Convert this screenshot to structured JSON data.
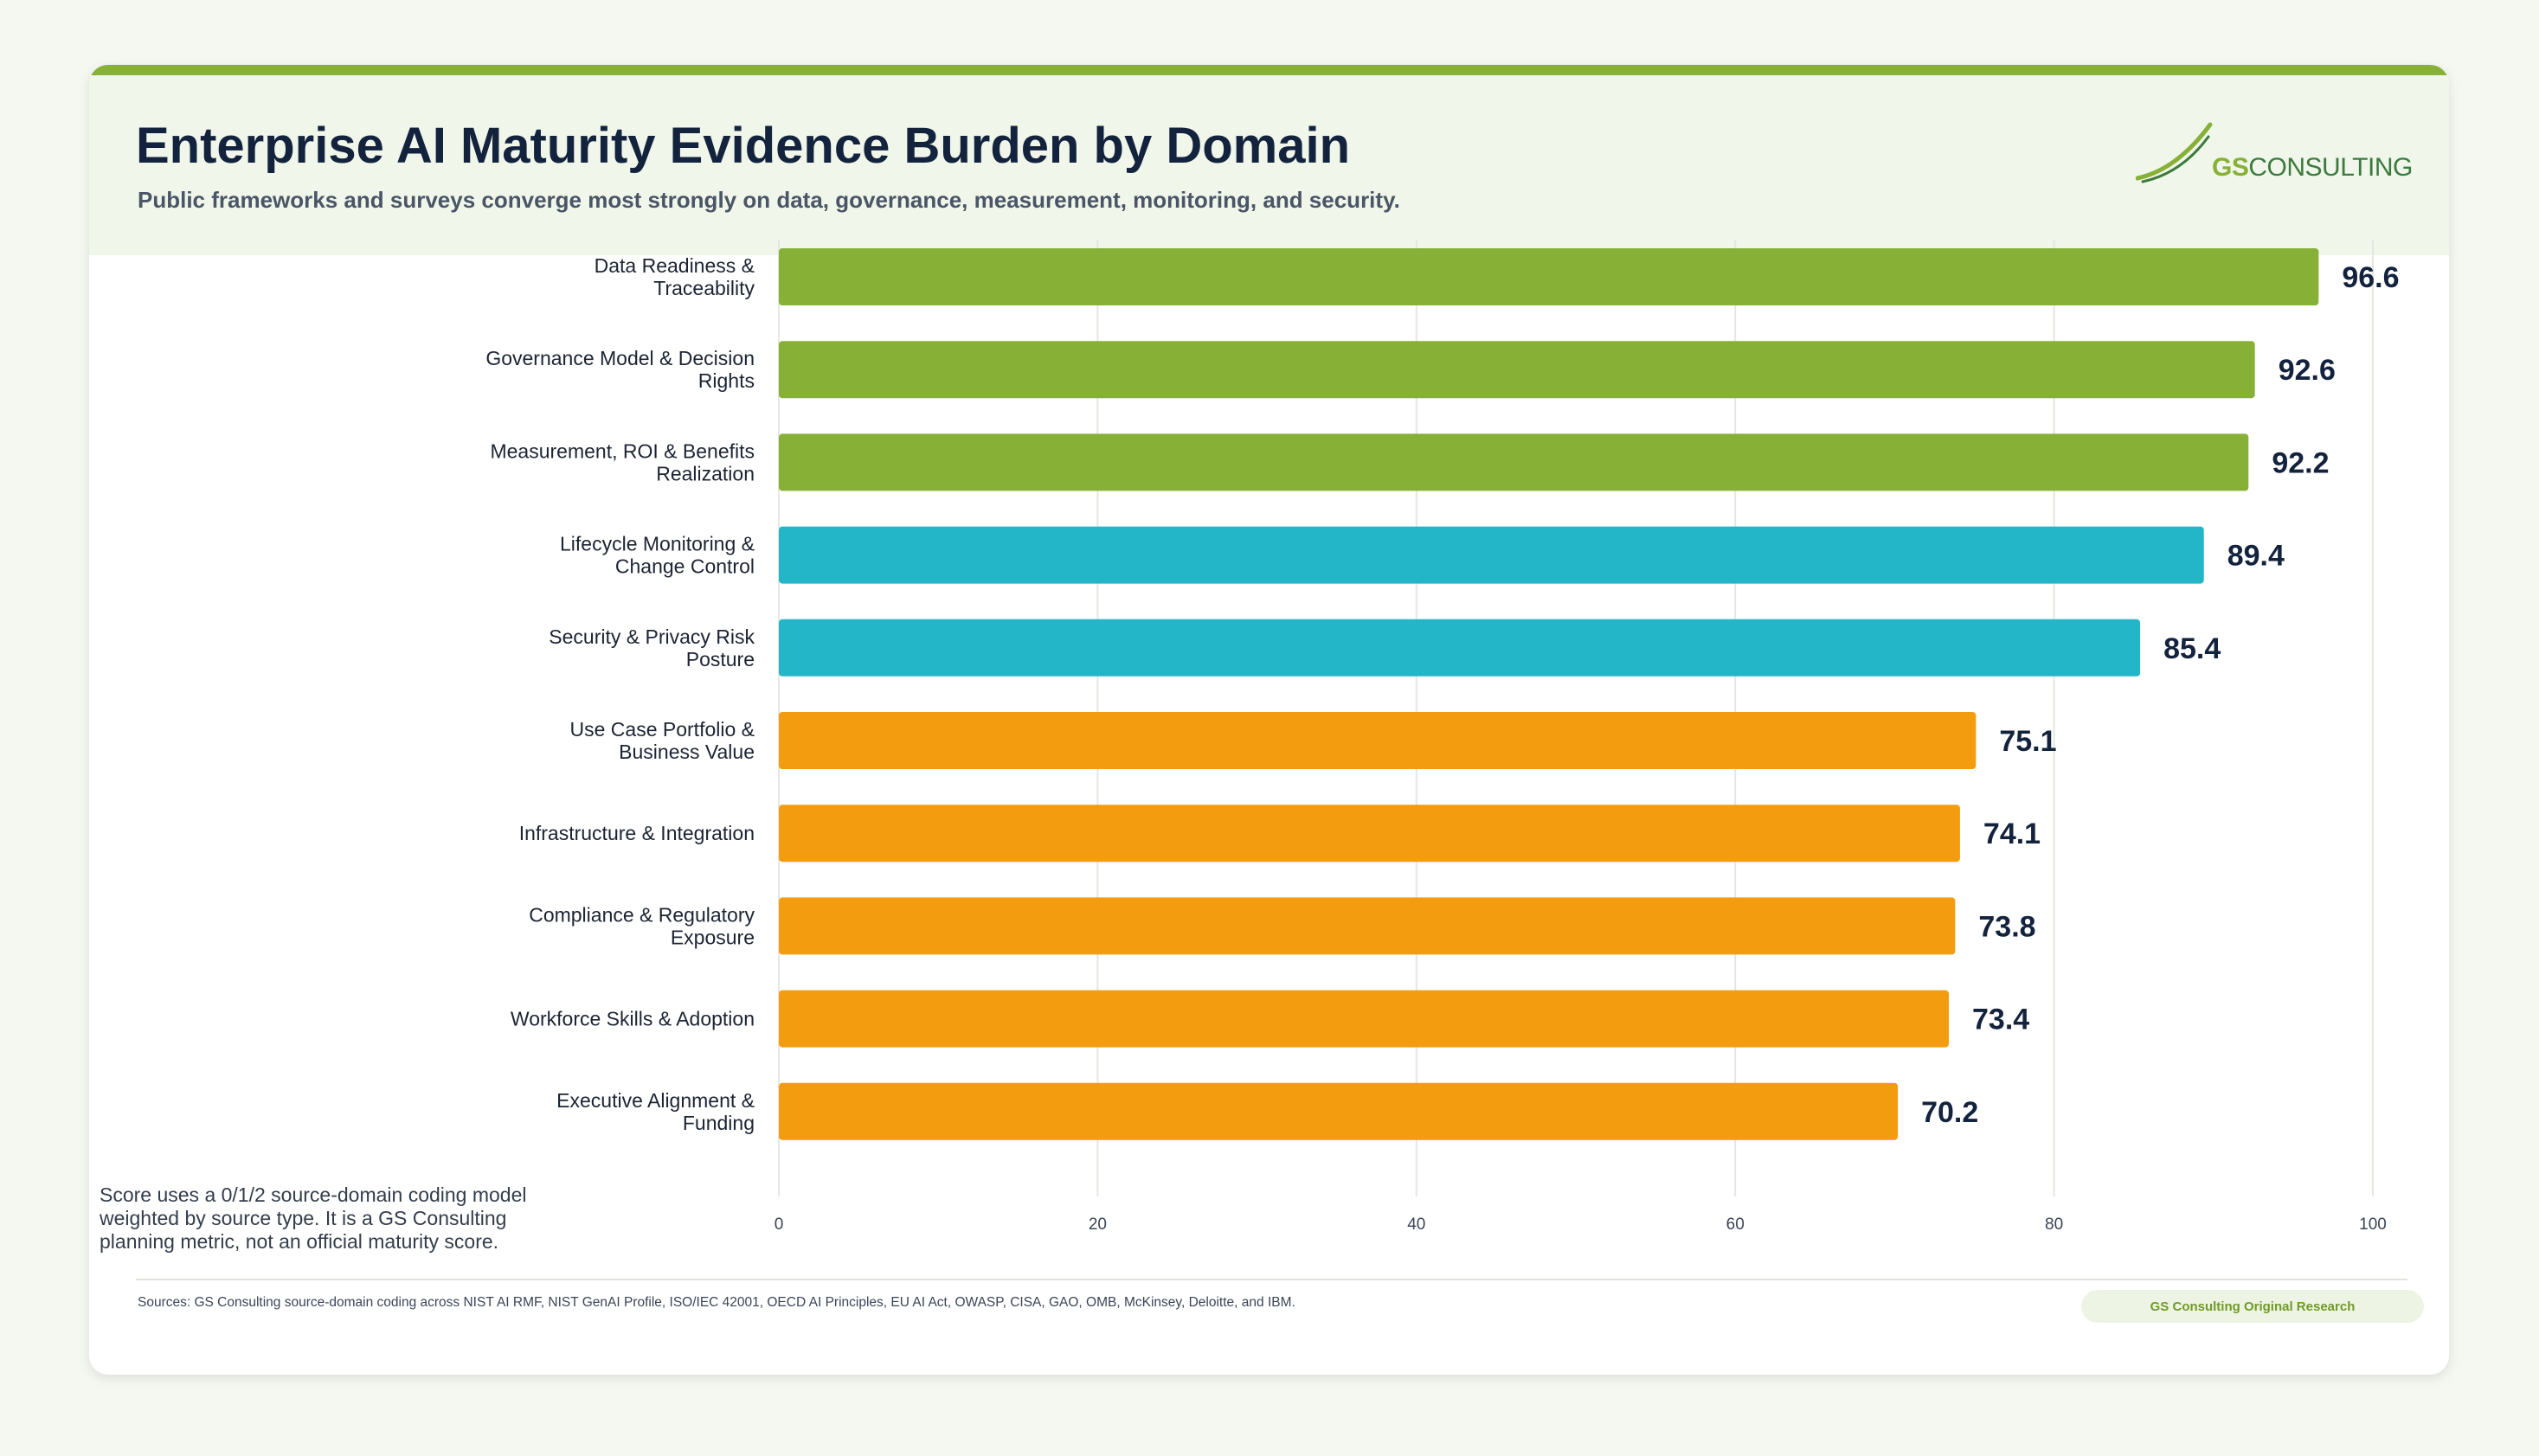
{
  "header": {
    "title": "Enterprise AI Maturity Evidence Burden by Domain",
    "subtitle": "Public frameworks and surveys converge most strongly on data, governance, measurement, monitoring, and security."
  },
  "logo": {
    "prefix": "GS",
    "suffix": "CONSULTING"
  },
  "footnote": "Score uses a 0/1/2 source-domain coding model weighted by source type. It is a GS Consulting planning metric, not an official maturity score.",
  "sources": "Sources: GS Consulting source-domain coding across NIST AI RMF, NIST GenAI Profile, ISO/IEC 42001, OECD AI Principles, EU AI Act, OWASP, CISA, GAO, OMB, McKinsey, Deloitte, and IBM.",
  "badge": "GS Consulting Original Research",
  "chart_data": {
    "type": "bar",
    "orientation": "horizontal",
    "categories": [
      [
        "Data Readiness &",
        "Traceability"
      ],
      [
        "Governance Model & Decision",
        "Rights"
      ],
      [
        "Measurement, ROI & Benefits",
        "Realization"
      ],
      [
        "Lifecycle Monitoring &",
        "Change Control"
      ],
      [
        "Security & Privacy Risk",
        "Posture"
      ],
      [
        "Use Case Portfolio &",
        "Business Value"
      ],
      [
        "Infrastructure & Integration"
      ],
      [
        "Compliance & Regulatory",
        "Exposure"
      ],
      [
        "Workforce Skills & Adoption"
      ],
      [
        "Executive Alignment &",
        "Funding"
      ]
    ],
    "values": [
      96.6,
      92.6,
      92.2,
      89.4,
      85.4,
      75.1,
      74.1,
      73.8,
      73.4,
      70.2
    ],
    "value_labels": [
      "96.6",
      "92.6",
      "92.2",
      "89.4",
      "85.4",
      "75.1",
      "74.1",
      "73.8",
      "73.4",
      "70.2"
    ],
    "bar_colors": [
      "#86b136",
      "#86b136",
      "#86b136",
      "#22b6c8",
      "#22b6c8",
      "#f39c0f",
      "#f39c0f",
      "#f39c0f",
      "#f39c0f",
      "#f39c0f"
    ],
    "xlim": [
      0,
      100
    ],
    "xticks": [
      0,
      20,
      40,
      60,
      80,
      100
    ],
    "xtick_labels": [
      "0",
      "20",
      "40",
      "60",
      "80",
      "100"
    ],
    "grid": true,
    "xlabel": "",
    "ylabel": ""
  },
  "colors": {
    "accent": "#86b136",
    "title": "#14233d",
    "tier_high": "#86b136",
    "tier_mid": "#22b6c8",
    "tier_low": "#f39c0f"
  }
}
